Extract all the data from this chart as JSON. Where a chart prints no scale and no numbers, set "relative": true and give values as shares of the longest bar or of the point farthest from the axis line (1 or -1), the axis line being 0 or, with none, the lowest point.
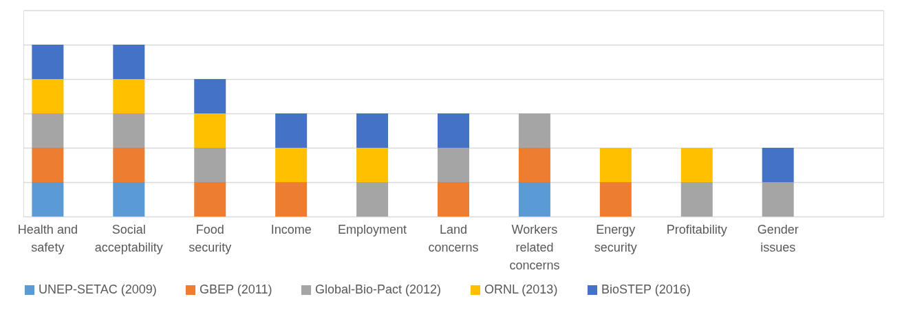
{
  "chart_data": {
    "type": "bar",
    "stacked": true,
    "relative": true,
    "grid": "y",
    "legend": "bottom",
    "categories": [
      "Health and safety",
      "Social acceptability",
      "Food security",
      "Income",
      "Employment",
      "Land concerns",
      "Workers related concerns",
      "Energy security",
      "Profitability",
      "Gender issues",
      null
    ],
    "series": [
      {
        "name": "UNEP-SETAC (2009)",
        "color": "#5b9bd5",
        "values": [
          0.2,
          0.2,
          null,
          null,
          null,
          null,
          0.2,
          null,
          null,
          null,
          null
        ]
      },
      {
        "name": "GBEP (2011)",
        "color": "#ed7d31",
        "values": [
          0.2,
          0.2,
          0.2,
          0.2,
          null,
          0.2,
          0.2,
          0.2,
          null,
          null,
          null
        ]
      },
      {
        "name": "Global-Bio-Pact (2012)",
        "color": "#a5a5a5",
        "values": [
          0.2,
          0.2,
          0.2,
          null,
          0.2,
          0.2,
          0.2,
          null,
          0.2,
          0.2,
          null
        ]
      },
      {
        "name": "ORNL (2013)",
        "color": "#ffc000",
        "values": [
          0.2,
          0.2,
          0.2,
          0.2,
          0.2,
          null,
          null,
          0.2,
          0.2,
          null,
          null
        ]
      },
      {
        "name": "BioSTEP (2016)",
        "color": "#4472c4",
        "values": [
          0.2,
          0.2,
          0.2,
          0.2,
          0.2,
          0.2,
          null,
          null,
          null,
          0.2,
          null
        ]
      }
    ]
  }
}
